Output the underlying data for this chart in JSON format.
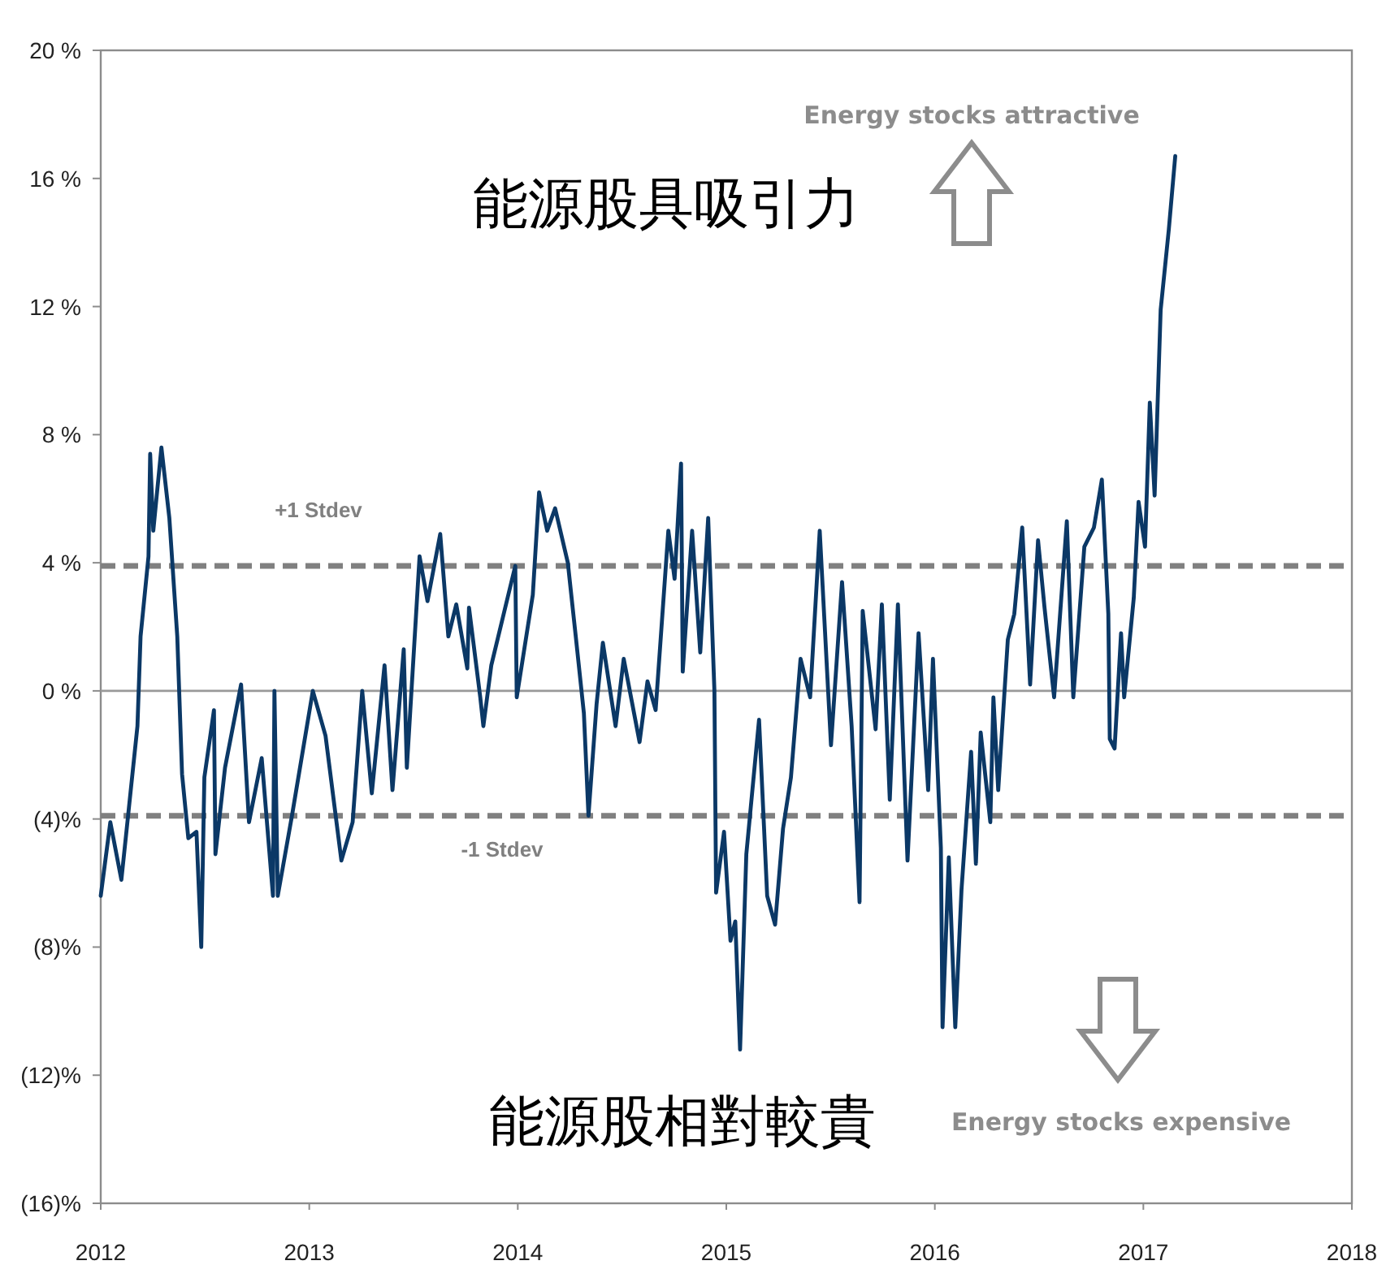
{
  "chart_data": {
    "type": "line",
    "x": [
      2012.0,
      2012.046,
      2012.099,
      2012.176,
      2012.191,
      2012.229,
      2012.237,
      2012.252,
      2012.291,
      2012.329,
      2012.367,
      2012.39,
      2012.42,
      2012.459,
      2012.482,
      2012.497,
      2012.543,
      2012.55,
      2012.596,
      2012.673,
      2012.711,
      2012.772,
      2012.826,
      2012.833,
      2012.849,
      2012.917,
      2013.017,
      2013.078,
      2013.154,
      2013.208,
      2013.254,
      2013.3,
      2013.361,
      2013.399,
      2013.453,
      2013.468,
      2013.529,
      2013.567,
      2013.628,
      2013.667,
      2013.705,
      2013.758,
      2013.766,
      2013.82,
      2013.835,
      2013.873,
      2013.988,
      2013.995,
      2014.072,
      2014.102,
      2014.141,
      2014.179,
      2014.24,
      2014.278,
      2014.317,
      2014.339,
      2014.378,
      2014.408,
      2014.469,
      2014.508,
      2014.584,
      2014.622,
      2014.661,
      2014.722,
      2014.752,
      2014.783,
      2014.791,
      2014.836,
      2014.875,
      2014.913,
      2014.943,
      2014.951,
      2014.989,
      2015.02,
      2015.043,
      2015.066,
      2015.096,
      2015.157,
      2015.196,
      2015.234,
      2015.272,
      2015.31,
      2015.356,
      2015.402,
      2015.448,
      2015.502,
      2015.555,
      2015.601,
      2015.639,
      2015.654,
      2015.716,
      2015.746,
      2015.784,
      2015.823,
      2015.869,
      2015.922,
      2015.968,
      2015.991,
      2016.029,
      2016.037,
      2016.067,
      2016.098,
      2016.128,
      2016.174,
      2016.197,
      2016.22,
      2016.266,
      2016.281,
      2016.304,
      2016.35,
      2016.381,
      2016.419,
      2016.457,
      2016.495,
      2016.526,
      2016.572,
      2016.633,
      2016.664,
      2016.717,
      2016.763,
      2016.801,
      2016.832,
      2016.839,
      2016.862,
      2016.893,
      2016.908,
      2016.954,
      2016.977,
      2017.008,
      2017.031,
      2017.054,
      2017.083,
      2017.122,
      2017.153
    ],
    "series": [
      {
        "color": "#0b3866",
        "values": [
          -6.4,
          -4.1,
          -5.9,
          -1.1,
          1.7,
          4.2,
          7.4,
          5.0,
          7.6,
          5.4,
          1.7,
          -2.6,
          -4.6,
          -4.4,
          -8.0,
          -2.7,
          -0.6,
          -5.1,
          -2.4,
          0.2,
          -4.1,
          -2.1,
          -6.4,
          0.0,
          -6.4,
          -3.9,
          0.0,
          -1.4,
          -5.3,
          -4.1,
          0.0,
          -3.2,
          0.8,
          -3.1,
          1.3,
          -2.4,
          4.2,
          2.8,
          4.9,
          1.7,
          2.7,
          0.7,
          2.6,
          -0.2,
          -1.1,
          0.8,
          3.9,
          -0.2,
          3.0,
          6.2,
          5.0,
          5.7,
          4.0,
          1.7,
          -0.7,
          -3.9,
          -0.4,
          1.5,
          -1.1,
          1.0,
          -1.6,
          0.3,
          -0.6,
          5.0,
          3.5,
          7.1,
          0.6,
          5.0,
          1.2,
          5.4,
          0.0,
          -6.3,
          -4.4,
          -7.8,
          -7.2,
          -11.2,
          -5.1,
          -0.9,
          -6.4,
          -7.3,
          -4.3,
          -2.7,
          1.0,
          -0.2,
          5.0,
          -1.7,
          3.4,
          -1.1,
          -6.6,
          2.5,
          -1.2,
          2.7,
          -3.4,
          2.7,
          -5.3,
          1.8,
          -3.1,
          1.0,
          -4.9,
          -10.5,
          -5.2,
          -10.5,
          -6.2,
          -1.9,
          -5.4,
          -1.3,
          -4.1,
          -0.2,
          -3.1,
          1.6,
          2.4,
          5.1,
          0.2,
          4.7,
          2.6,
          -0.2,
          5.3,
          -0.2,
          4.5,
          5.1,
          6.6,
          2.4,
          -1.5,
          -1.8,
          1.8,
          -0.2,
          2.9,
          5.9,
          4.5,
          9.0,
          6.1,
          11.9,
          14.4,
          16.7
        ]
      }
    ],
    "xlim": [
      2012,
      2018
    ],
    "xticks": [
      2012,
      2013,
      2014,
      2015,
      2016,
      2017,
      2018
    ],
    "ylim": [
      -16,
      20
    ],
    "yticks": [
      {
        "value": 20,
        "label": "20 %"
      },
      {
        "value": 16,
        "label": "16 %"
      },
      {
        "value": 12,
        "label": "12 %"
      },
      {
        "value": 8,
        "label": "8 %"
      },
      {
        "value": 4,
        "label": "4 %"
      },
      {
        "value": 0,
        "label": "0 %"
      },
      {
        "value": -4,
        "label": "(4)%"
      },
      {
        "value": -8,
        "label": "(8)%"
      },
      {
        "value": -12,
        "label": "(12)%"
      },
      {
        "value": -16,
        "label": "(16)%"
      }
    ],
    "ref_lines": [
      {
        "axis": "y",
        "value": 0,
        "color": "#999999",
        "line_style": "solid"
      },
      {
        "axis": "y",
        "value": 3.9,
        "label": "+1 Stdev",
        "color": "#808080",
        "line_style": "dashed"
      },
      {
        "axis": "y",
        "value": -3.9,
        "label": "-1 Stdev",
        "color": "#808080",
        "line_style": "dashed"
      }
    ],
    "annotations": [
      "Energy stocks attractive",
      "能源股具吸引力",
      "能源股相對較貴",
      "Energy stocks expensive"
    ]
  }
}
